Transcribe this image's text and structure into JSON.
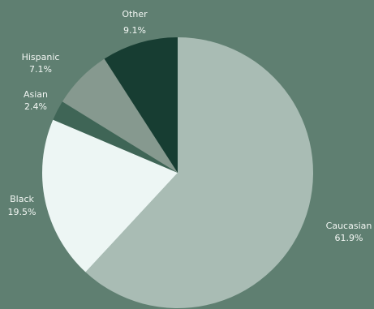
{
  "chart_data": {
    "type": "pie",
    "slices": [
      {
        "label": "Caucasian",
        "pct_label": "61.9%",
        "value": 61.9,
        "color": "#a9bcb4"
      },
      {
        "label": "Black",
        "pct_label": "19.5%",
        "value": 19.5,
        "color": "#edf6f4"
      },
      {
        "label": "Asian",
        "pct_label": "2.4%",
        "value": 2.4,
        "color": "#3f6556"
      },
      {
        "label": "Hispanic",
        "pct_label": "7.1%",
        "value": 7.1,
        "color": "#86998f"
      },
      {
        "label": "Other",
        "pct_label": "9.1%",
        "value": 9.1,
        "color": "#173d32"
      }
    ],
    "start": "12 o'clock",
    "direction": "clockwise",
    "background": "#5f7f71"
  }
}
